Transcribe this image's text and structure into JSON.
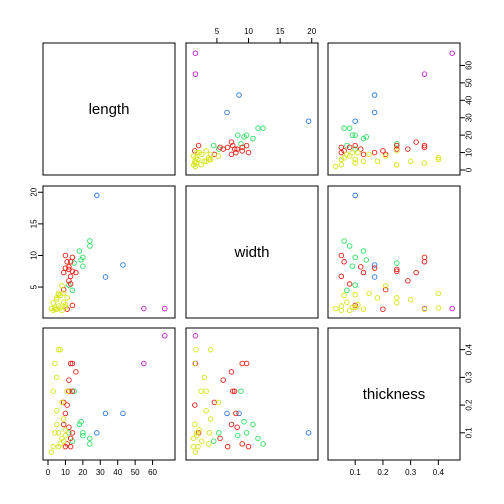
{
  "chart_data": {
    "type": "scatter",
    "variables": [
      "length",
      "width",
      "thickness"
    ],
    "axes": {
      "length": {
        "range": [
          0,
          70
        ],
        "ticks": [
          0,
          10,
          20,
          30,
          40,
          50,
          60
        ]
      },
      "width": {
        "range": [
          0.9,
          20.2
        ],
        "ticks": [
          5,
          10,
          15,
          20
        ]
      },
      "thickness": {
        "range": [
          0.02,
          0.46
        ],
        "ticks": [
          0.1,
          0.2,
          0.3,
          0.4
        ]
      }
    },
    "tick_labels": {
      "top": [
        "5",
        "10",
        "15",
        "20"
      ],
      "right_top": [
        "0",
        "10",
        "20",
        "30",
        "40",
        "50",
        "60"
      ],
      "left_middle": [
        "5",
        "10",
        "15",
        "20"
      ],
      "right_bottom": [
        "0.1",
        "0.2",
        "0.3",
        "0.4"
      ],
      "bottom_left": [
        "0",
        "10",
        "20",
        "30",
        "40",
        "50",
        "60"
      ],
      "bottom_right": [
        "0.1",
        "0.2",
        "0.3",
        "0.4"
      ]
    },
    "group_colors": {
      "yellow": "#d7e61a",
      "red": "#e8221a",
      "green": "#2fe063",
      "blue": "#2a78e0",
      "magenta": "#c81ed8"
    },
    "points": [
      {
        "g": "magenta",
        "length": 67,
        "width": 1.6,
        "thickness": 0.45
      },
      {
        "g": "magenta",
        "length": 55,
        "width": 1.6,
        "thickness": 0.35
      },
      {
        "g": "blue",
        "length": 43,
        "width": 8.5,
        "thickness": 0.17
      },
      {
        "g": "blue",
        "length": 33,
        "width": 6.6,
        "thickness": 0.17
      },
      {
        "g": "blue",
        "length": 28,
        "width": 19.5,
        "thickness": 0.1
      },
      {
        "g": "green",
        "length": 24,
        "width": 12.3,
        "thickness": 0.06
      },
      {
        "g": "green",
        "length": 20,
        "width": 9.7,
        "thickness": 0.1
      },
      {
        "g": "green",
        "length": 19,
        "width": 9.3,
        "thickness": 0.14
      },
      {
        "g": "green",
        "length": 20,
        "width": 8.3,
        "thickness": 0.09
      },
      {
        "g": "green",
        "length": 24,
        "width": 11.5,
        "thickness": 0.08
      },
      {
        "g": "green",
        "length": 12,
        "width": 5.3,
        "thickness": 0.1
      },
      {
        "g": "green",
        "length": 15,
        "width": 8.8,
        "thickness": 0.25
      },
      {
        "g": "green",
        "length": 18,
        "width": 10.7,
        "thickness": 0.13
      },
      {
        "g": "green",
        "length": 14,
        "width": 4.5,
        "thickness": 0.07
      },
      {
        "g": "red",
        "length": 14,
        "width": 9.7,
        "thickness": 0.35
      },
      {
        "g": "red",
        "length": 16,
        "width": 7.3,
        "thickness": 0.32
      },
      {
        "g": "red",
        "length": 13,
        "width": 9.0,
        "thickness": 0.35
      },
      {
        "g": "red",
        "length": 14,
        "width": 7.5,
        "thickness": 0.25
      },
      {
        "g": "red",
        "length": 12,
        "width": 6.0,
        "thickness": 0.29
      },
      {
        "g": "red",
        "length": 10,
        "width": 8.0,
        "thickness": 0.17
      },
      {
        "g": "red",
        "length": 12,
        "width": 8.2,
        "thickness": 0.12
      },
      {
        "g": "red",
        "length": 9,
        "width": 4.6,
        "thickness": 0.21
      },
      {
        "g": "red",
        "length": 14,
        "width": 2.1,
        "thickness": 0.1
      },
      {
        "g": "red",
        "length": 13,
        "width": 6.7,
        "thickness": 0.05
      },
      {
        "g": "red",
        "length": 11,
        "width": 9.0,
        "thickness": 0.06
      },
      {
        "g": "red",
        "length": 10,
        "width": 10.0,
        "thickness": 0.05
      },
      {
        "g": "red",
        "length": 12,
        "width": 7.8,
        "thickness": 0.25
      },
      {
        "g": "red",
        "length": 11,
        "width": 1.5,
        "thickness": 0.2
      },
      {
        "g": "red",
        "length": 9,
        "width": 7.3,
        "thickness": 0.13
      },
      {
        "g": "red",
        "length": 13,
        "width": 5.5,
        "thickness": 0.08
      },
      {
        "g": "yellow",
        "length": 6,
        "width": 4.0,
        "thickness": 0.4
      },
      {
        "g": "yellow",
        "length": 5,
        "width": 3.0,
        "thickness": 0.3
      },
      {
        "g": "yellow",
        "length": 4,
        "width": 1.5,
        "thickness": 0.35
      },
      {
        "g": "yellow",
        "length": 3,
        "width": 2.5,
        "thickness": 0.25
      },
      {
        "g": "yellow",
        "length": 8,
        "width": 1.3,
        "thickness": 0.08
      },
      {
        "g": "yellow",
        "length": 9,
        "width": 4.0,
        "thickness": 0.15
      },
      {
        "g": "yellow",
        "length": 6,
        "width": 2.0,
        "thickness": 0.05
      },
      {
        "g": "yellow",
        "length": 5,
        "width": 3.3,
        "thickness": 0.18
      },
      {
        "g": "yellow",
        "length": 10,
        "width": 2.2,
        "thickness": 0.11
      },
      {
        "g": "yellow",
        "length": 7,
        "width": 3.7,
        "thickness": 0.06
      },
      {
        "g": "yellow",
        "length": 4,
        "width": 1.8,
        "thickness": 0.1
      },
      {
        "g": "yellow",
        "length": 8,
        "width": 5.2,
        "thickness": 0.21
      },
      {
        "g": "yellow",
        "length": 9,
        "width": 2.6,
        "thickness": 0.07
      },
      {
        "g": "yellow",
        "length": 2,
        "width": 1.6,
        "thickness": 0.03
      },
      {
        "g": "yellow",
        "length": 7,
        "width": 1.7,
        "thickness": 0.4
      },
      {
        "g": "yellow",
        "length": 5,
        "width": 1.5,
        "thickness": 0.13
      },
      {
        "g": "yellow",
        "length": 11,
        "width": 3.3,
        "thickness": 0.25
      },
      {
        "g": "yellow",
        "length": 3,
        "width": 1.3,
        "thickness": 0.05
      },
      {
        "g": "yellow",
        "length": 6,
        "width": 3.8,
        "thickness": 0.1
      },
      {
        "g": "yellow",
        "length": 10,
        "width": 1.8,
        "thickness": 0.09
      }
    ]
  }
}
